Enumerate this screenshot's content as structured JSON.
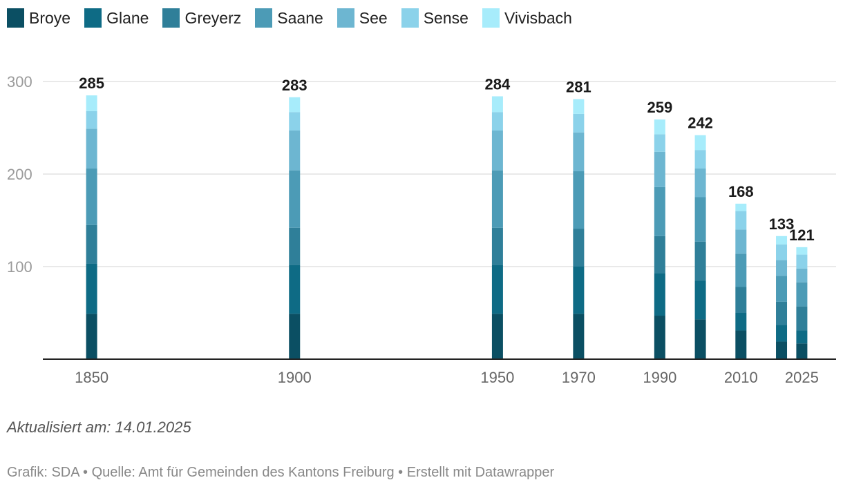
{
  "chart_data": {
    "type": "bar",
    "stacked": true,
    "title": "",
    "xlabel": "",
    "ylabel": "",
    "ylim": [
      0,
      310
    ],
    "yticks": [
      100,
      200,
      300
    ],
    "xlim": [
      1840,
      2030
    ],
    "x_tick_labels": [
      "1850",
      "1900",
      "1950",
      "1970",
      "1990",
      "2010",
      "2025"
    ],
    "x": [
      1850,
      1900,
      1950,
      1970,
      1990,
      2000,
      2010,
      2020,
      2025
    ],
    "totals": [
      285,
      283,
      284,
      281,
      259,
      242,
      168,
      133,
      121
    ],
    "series": [
      {
        "name": "Broye",
        "color": "#0b4f63",
        "values": [
          49,
          49,
          49,
          49,
          47,
          43,
          31,
          19,
          17
        ]
      },
      {
        "name": "Glane",
        "color": "#0e6b85",
        "values": [
          54,
          53,
          53,
          51,
          46,
          42,
          19,
          18,
          14
        ]
      },
      {
        "name": "Greyerz",
        "color": "#2f7f99",
        "values": [
          42,
          40,
          40,
          41,
          40,
          42,
          28,
          25,
          26
        ]
      },
      {
        "name": "Saane",
        "color": "#4c9bb6",
        "values": [
          61,
          62,
          62,
          62,
          53,
          48,
          36,
          28,
          26
        ]
      },
      {
        "name": "See",
        "color": "#6db6d1",
        "values": [
          43,
          43,
          43,
          42,
          38,
          31,
          26,
          17,
          15
        ]
      },
      {
        "name": "Sense",
        "color": "#8bd2ea",
        "values": [
          19,
          20,
          20,
          20,
          19,
          20,
          20,
          17,
          15
        ]
      },
      {
        "name": "Vivisbach",
        "color": "#a7ecfb",
        "values": [
          17,
          16,
          17,
          16,
          16,
          16,
          8,
          9,
          8
        ]
      }
    ]
  },
  "footer": {
    "updated": "Aktualisiert am: 14.01.2025",
    "source": "Grafik: SDA • Quelle: Amt für Gemeinden des Kantons Freiburg • Erstellt mit Datawrapper"
  }
}
